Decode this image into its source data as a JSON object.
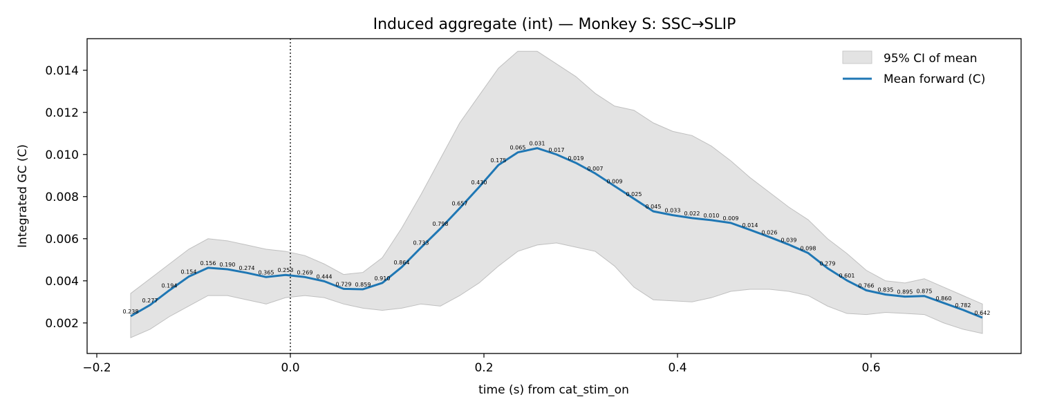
{
  "chart_data": {
    "type": "line",
    "title": "Induced aggregate (int) — Monkey S: SSC→SLIP",
    "xlabel": "time (s) from cat_stim_on",
    "ylabel": "Integrated GC (C)",
    "xlim": [
      -0.21,
      0.755
    ],
    "ylim": [
      0.00055,
      0.0155
    ],
    "xticks": [
      -0.2,
      0.0,
      0.2,
      0.4,
      0.6
    ],
    "xtick_labels": [
      "−0.2",
      "0.0",
      "0.2",
      "0.4",
      "0.6"
    ],
    "yticks": [
      0.002,
      0.004,
      0.006,
      0.008,
      0.01,
      0.012,
      0.014
    ],
    "ytick_labels": [
      "0.002",
      "0.004",
      "0.006",
      "0.008",
      "0.010",
      "0.012",
      "0.014"
    ],
    "vline_x": 0.0,
    "grid": false,
    "legend_position": "top-right",
    "legend": [
      "95% CI of mean",
      "Mean forward (C)"
    ],
    "colors": {
      "line": "#1f77b4",
      "band": "#d9d9d9",
      "band_edge": "#bfbfbf"
    },
    "x": [
      -0.165,
      -0.145,
      -0.125,
      -0.105,
      -0.085,
      -0.065,
      -0.045,
      -0.025,
      -0.005,
      0.015,
      0.035,
      0.055,
      0.075,
      0.095,
      0.115,
      0.135,
      0.155,
      0.175,
      0.195,
      0.215,
      0.235,
      0.255,
      0.275,
      0.295,
      0.315,
      0.335,
      0.355,
      0.375,
      0.395,
      0.415,
      0.435,
      0.455,
      0.475,
      0.495,
      0.515,
      0.535,
      0.555,
      0.575,
      0.595,
      0.615,
      0.635,
      0.655,
      0.675,
      0.695,
      0.715
    ],
    "series": [
      {
        "name": "Mean forward (C)",
        "values": [
          0.00232,
          0.00285,
          0.00355,
          0.0042,
          0.00462,
          0.00455,
          0.00438,
          0.00418,
          0.00428,
          0.00418,
          0.00398,
          0.00362,
          0.0036,
          0.0039,
          0.00465,
          0.00558,
          0.00648,
          0.00745,
          0.00845,
          0.0095,
          0.0101,
          0.0103,
          0.01,
          0.0096,
          0.0091,
          0.0085,
          0.0079,
          0.0073,
          0.00712,
          0.00698,
          0.00688,
          0.00675,
          0.00642,
          0.00608,
          0.00572,
          0.00532,
          0.0046,
          0.00402,
          0.00355,
          0.00335,
          0.00325,
          0.00328,
          0.00295,
          0.00262,
          0.00225
        ]
      }
    ],
    "ci_lower": [
      0.0013,
      0.0017,
      0.0023,
      0.0028,
      0.0033,
      0.0033,
      0.0031,
      0.0029,
      0.0032,
      0.0033,
      0.0032,
      0.0029,
      0.0027,
      0.0026,
      0.0027,
      0.0029,
      0.0028,
      0.0033,
      0.0039,
      0.0047,
      0.0054,
      0.0057,
      0.0058,
      0.0056,
      0.0054,
      0.0047,
      0.0037,
      0.0031,
      0.00305,
      0.003,
      0.0032,
      0.0035,
      0.0036,
      0.0036,
      0.0035,
      0.0033,
      0.0028,
      0.00245,
      0.0024,
      0.0025,
      0.00245,
      0.0024,
      0.002,
      0.0017,
      0.0015
    ],
    "ci_upper": [
      0.0034,
      0.0041,
      0.0048,
      0.0055,
      0.006,
      0.0059,
      0.0057,
      0.0055,
      0.0054,
      0.0052,
      0.0048,
      0.0043,
      0.0044,
      0.0051,
      0.0065,
      0.0081,
      0.0098,
      0.0115,
      0.0128,
      0.0141,
      0.0149,
      0.0149,
      0.0143,
      0.0137,
      0.0129,
      0.0123,
      0.0121,
      0.0115,
      0.0111,
      0.0109,
      0.0104,
      0.0097,
      0.0089,
      0.0082,
      0.0075,
      0.0069,
      0.006,
      0.0053,
      0.0045,
      0.004,
      0.0039,
      0.0041,
      0.0037,
      0.0033,
      0.0029
    ],
    "point_labels": [
      "0.238",
      "0.277",
      "0.194",
      "0.154",
      "0.156",
      "0.190",
      "0.274",
      "0.365",
      "0.253",
      "0.269",
      "0.444",
      "0.729",
      "0.859",
      "0.910",
      "0.864",
      "0.733",
      "0.798",
      "0.657",
      "0.430",
      "0.175",
      "0.065",
      "0.031",
      "0.017",
      "0.019",
      "0.007",
      "0.009",
      "0.025",
      "0.045",
      "0.033",
      "0.022",
      "0.010",
      "0.009",
      "0.014",
      "0.026",
      "0.039",
      "0.098",
      "0.279",
      "0.601",
      "0.766",
      "0.835",
      "0.895",
      "0.875",
      "0.860",
      "0.782",
      "0.642"
    ]
  }
}
